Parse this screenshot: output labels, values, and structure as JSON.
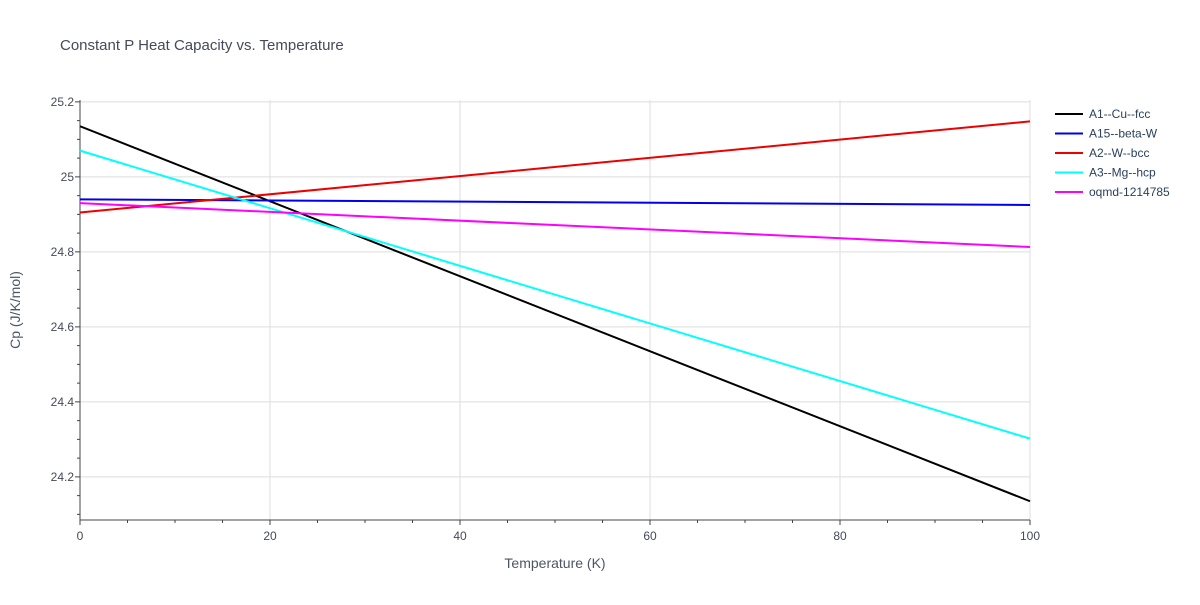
{
  "chart_data": {
    "type": "line",
    "title": "Constant P Heat Capacity vs. Temperature",
    "xlabel": "Temperature (K)",
    "ylabel": "Cp (J/K/mol)",
    "xlim": [
      0,
      100
    ],
    "ylim": [
      24.085,
      25.205
    ],
    "xticks": [
      0,
      20,
      40,
      60,
      80,
      100
    ],
    "xtick_labels": [
      "0",
      "20",
      "40",
      "60",
      "80",
      "100"
    ],
    "yticks": [
      24.2,
      24.4,
      24.6,
      24.8,
      25.0,
      25.2
    ],
    "ytick_labels": [
      "24.2",
      "24.4",
      "24.6",
      "24.8",
      "25",
      "25.2"
    ],
    "grid": true,
    "legend_position": "top-right",
    "series": [
      {
        "name": "A1--Cu--fcc",
        "color": "#000000",
        "x": [
          0,
          100
        ],
        "y": [
          25.135,
          24.135
        ]
      },
      {
        "name": "A15--beta-W",
        "color": "#0000ee",
        "x": [
          0,
          100
        ],
        "y": [
          24.94,
          24.925
        ]
      },
      {
        "name": "A2--W--bcc",
        "color": "#ee0000",
        "x": [
          0,
          100
        ],
        "y": [
          24.905,
          25.148
        ]
      },
      {
        "name": "A3--Mg--hcp",
        "color": "#00ffff",
        "x": [
          0,
          100
        ],
        "y": [
          25.07,
          24.302
        ]
      },
      {
        "name": "oqmd-1214785",
        "color": "#ff00ff",
        "x": [
          0,
          100
        ],
        "y": [
          24.93,
          24.813
        ]
      }
    ]
  }
}
